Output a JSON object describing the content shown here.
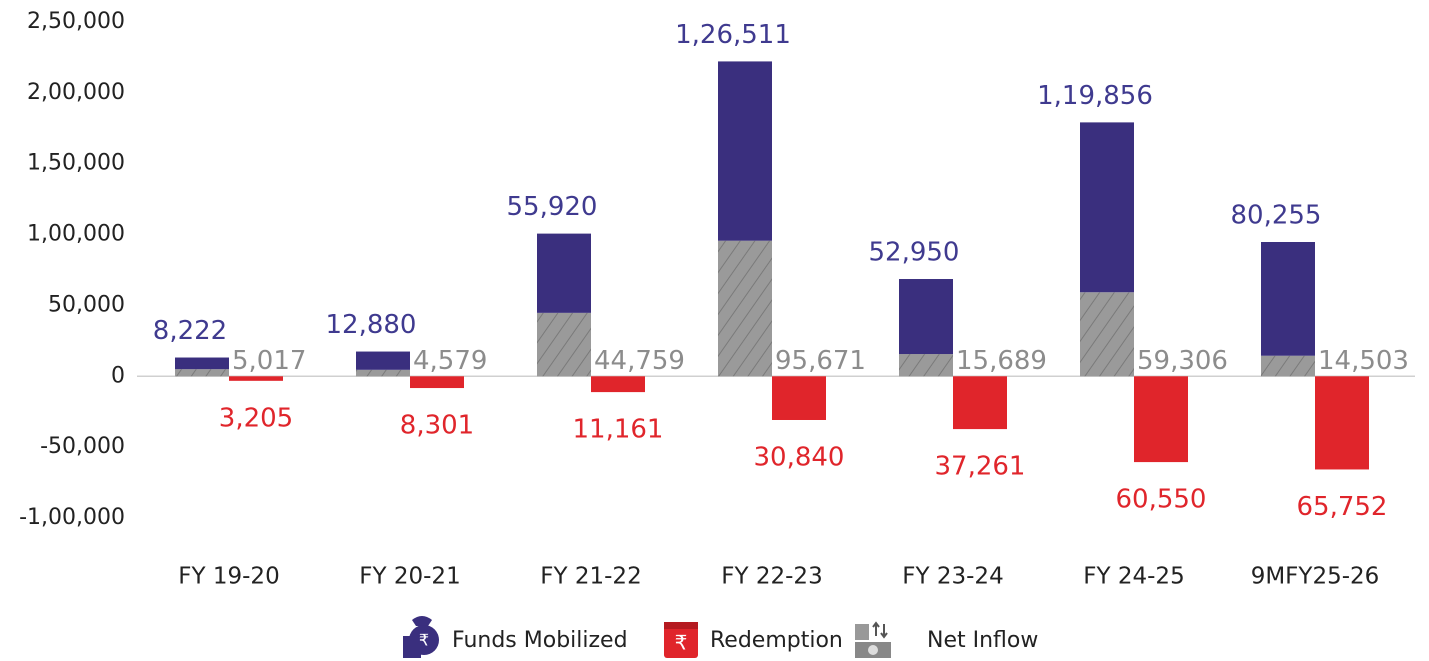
{
  "chart_data": {
    "type": "bar",
    "categories": [
      "FY 19-20",
      "FY 20-21",
      "FY 21-22",
      "FY 22-23",
      "FY 23-24",
      "FY 24-25",
      "9MFY25-26"
    ],
    "series": [
      {
        "name": "Funds Mobilized",
        "color": "#3a2f7e",
        "values": [
          8222,
          12880,
          55920,
          126511,
          52950,
          119856,
          80255
        ],
        "value_labels": [
          "8,222",
          "12,880",
          "55,920",
          "1,26,511",
          "52,950",
          "1,19,856",
          "80,255"
        ]
      },
      {
        "name": "Redemption",
        "color": "#e0252b",
        "values": [
          -3205,
          -8301,
          -11161,
          -30840,
          -37261,
          -60550,
          -65752
        ],
        "value_labels": [
          "3,205",
          "8,301",
          "11,161",
          "30,840",
          "37,261",
          "60,550",
          "65,752"
        ]
      },
      {
        "name": "Net Inflow",
        "color": "#9a9a9a",
        "values": [
          5017,
          4579,
          44759,
          95671,
          15689,
          59306,
          14503
        ],
        "value_labels": [
          "5,017",
          "4,579",
          "44,759",
          "95,671",
          "15,689",
          "59,306",
          "14,503"
        ]
      }
    ],
    "ylim": [
      -100000,
      250000
    ],
    "yticks": [
      {
        "value": -100000,
        "label": "-1,00,000"
      },
      {
        "value": -50000,
        "label": "-50,000"
      },
      0,
      {
        "value": 50000,
        "label": "50,000"
      },
      {
        "value": 100000,
        "label": "1,00,000"
      },
      {
        "value": 150000,
        "label": "1,50,000"
      },
      {
        "value": 200000,
        "label": "2,00,000"
      },
      {
        "value": 250000,
        "label": "2,50,000"
      }
    ]
  }
}
